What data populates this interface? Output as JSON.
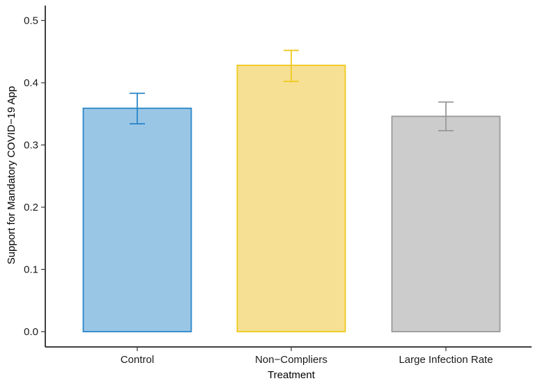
{
  "chart_data": {
    "type": "bar",
    "categories": [
      "Control",
      "Non−Compliers",
      "Large Infection Rate"
    ],
    "values": [
      0.359,
      0.428,
      0.346
    ],
    "error_low": [
      0.334,
      0.402,
      0.323
    ],
    "error_high": [
      0.383,
      0.452,
      0.369
    ],
    "xlabel": "Treatment",
    "ylabel": "Support for Mandatory COVID−19 App",
    "ylim": [
      0,
      0.53
    ],
    "yticks": [
      0.0,
      0.1,
      0.2,
      0.3,
      0.4,
      0.5
    ],
    "ytick_labels": [
      "0.0",
      "0.1",
      "0.2",
      "0.3",
      "0.4",
      "0.5"
    ],
    "grid": false,
    "colors": {
      "fill": [
        "#9ac6e6",
        "#f5e094",
        "#cccccc"
      ],
      "stroke": [
        "#2a86c8",
        "#f0c91f",
        "#999999"
      ]
    }
  }
}
